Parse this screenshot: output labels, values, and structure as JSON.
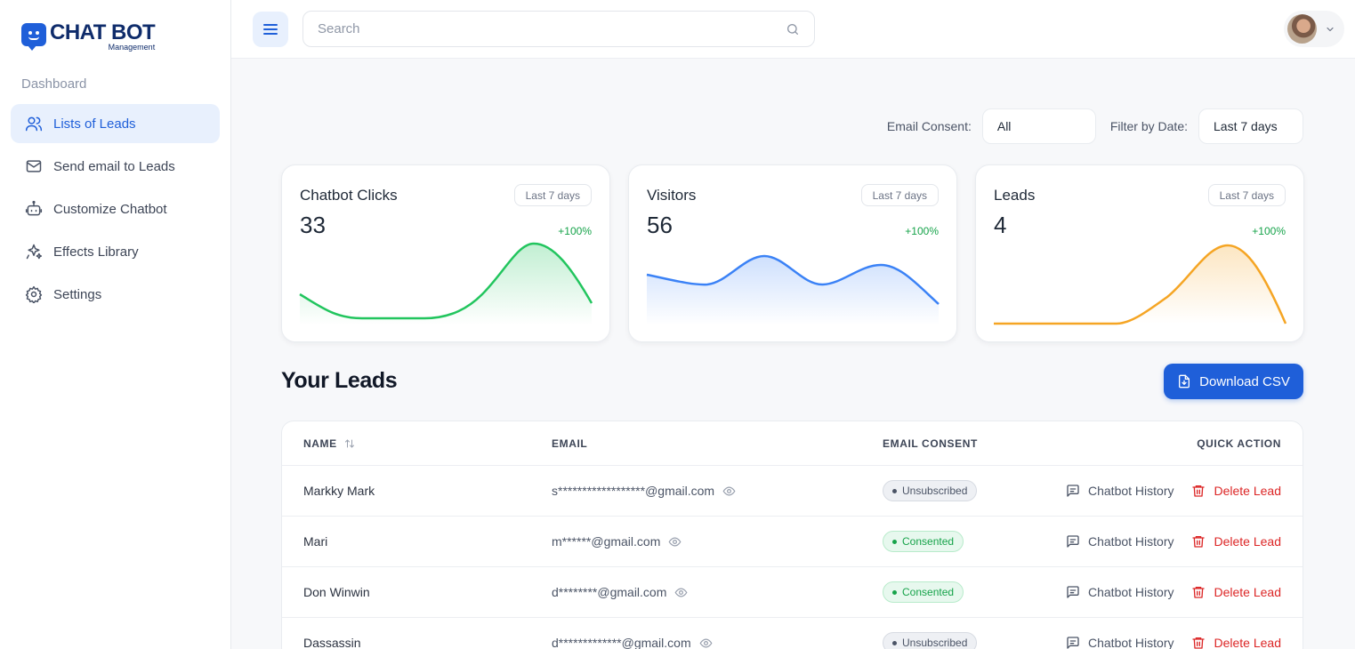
{
  "brand": {
    "title": "CHAT BOT",
    "subtitle": "Management"
  },
  "sidebar": {
    "section": "Dashboard",
    "items": [
      {
        "label": "Lists of Leads",
        "icon": "users-icon",
        "active": true
      },
      {
        "label": "Send email to Leads",
        "icon": "mail-icon"
      },
      {
        "label": "Customize Chatbot",
        "icon": "bot-icon"
      },
      {
        "label": "Effects Library",
        "icon": "sparkles-icon"
      },
      {
        "label": "Settings",
        "icon": "gear-icon"
      }
    ]
  },
  "topbar": {
    "search_placeholder": "Search"
  },
  "filters": {
    "consent_label": "Email Consent:",
    "consent_value": "All",
    "date_label": "Filter by Date:",
    "date_value": "Last 7 days"
  },
  "cards": [
    {
      "title": "Chatbot Clicks",
      "value": "33",
      "period": "Last 7 days",
      "change": "+100%",
      "color": "#22c55e"
    },
    {
      "title": "Visitors",
      "value": "56",
      "period": "Last 7 days",
      "change": "+100%",
      "color": "#3b82f6"
    },
    {
      "title": "Leads",
      "value": "4",
      "period": "Last 7 days",
      "change": "+100%",
      "color": "#f5a524"
    }
  ],
  "leads": {
    "title": "Your Leads",
    "download_label": "Download CSV",
    "columns": {
      "name": "NAME",
      "email": "EMAIL",
      "consent": "EMAIL CONSENT",
      "action": "QUICK ACTION"
    },
    "history_label": "Chatbot History",
    "delete_label": "Delete Lead",
    "rows": [
      {
        "name": "Markky Mark",
        "email": "s******************@gmail.com",
        "consent": "Unsubscribed"
      },
      {
        "name": "Mari",
        "email": "m******@gmail.com",
        "consent": "Consented"
      },
      {
        "name": "Don Winwin",
        "email": "d********@gmail.com",
        "consent": "Consented"
      },
      {
        "name": "Dassassin",
        "email": "d*************@gmail.com",
        "consent": "Unsubscribed"
      }
    ]
  }
}
